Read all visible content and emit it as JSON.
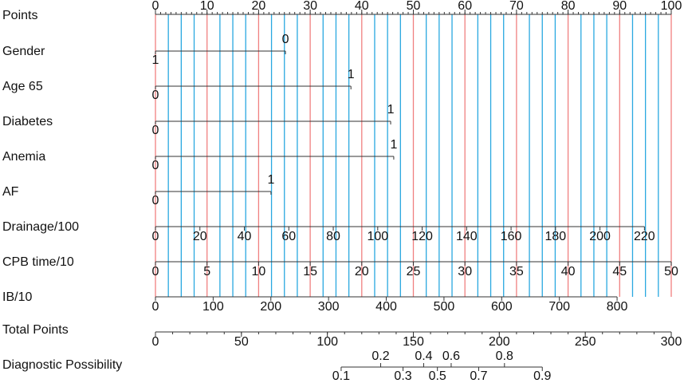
{
  "chart_data": {
    "type": "nomogram",
    "grid": {
      "major_color": "#f08080",
      "minor_color": "#29a8e0",
      "minor_step": 2.5
    },
    "points_axis": {
      "label": "Points",
      "xlim": [
        0,
        100
      ],
      "ticks": [
        0,
        10,
        20,
        30,
        40,
        50,
        60,
        70,
        80,
        90,
        100
      ],
      "minor_step": 1
    },
    "rows": [
      {
        "label": "Gender",
        "levels": [
          "0",
          "1"
        ],
        "points": [
          25.2,
          0
        ]
      },
      {
        "label": "Age 65",
        "levels": [
          "0",
          "1"
        ],
        "points": [
          0,
          37.9
        ]
      },
      {
        "label": "Diabetes",
        "levels": [
          "0",
          "1"
        ],
        "points": [
          0,
          45.6
        ]
      },
      {
        "label": "Anemia",
        "levels": [
          "0",
          "1"
        ],
        "points": [
          0,
          46.2
        ]
      },
      {
        "label": "AF",
        "levels": [
          "0",
          "1"
        ],
        "points": [
          0,
          22.4
        ]
      },
      {
        "label": "Drainage/100",
        "xlim": [
          0,
          220
        ],
        "points": [
          0,
          94.8
        ],
        "ticks": [
          0,
          20,
          40,
          60,
          80,
          100,
          120,
          140,
          160,
          180,
          200,
          220
        ]
      },
      {
        "label": "CPB time/10",
        "xlim": [
          0,
          50
        ],
        "points": [
          0,
          100
        ],
        "ticks": [
          0,
          5,
          10,
          15,
          20,
          25,
          30,
          35,
          40,
          45,
          50
        ]
      },
      {
        "label": "IB/10",
        "xlim": [
          0,
          800
        ],
        "points": [
          0,
          89.5
        ],
        "ticks": [
          0,
          100,
          200,
          300,
          400,
          500,
          600,
          700,
          800
        ]
      }
    ],
    "total_axis": {
      "label": "Total Points",
      "xlim": [
        0,
        300
      ],
      "ticks": [
        0,
        50,
        100,
        150,
        200,
        250,
        300
      ],
      "minor_step": 10
    },
    "probability_axis": {
      "label": "Diagnostic Possibility",
      "ticks": [
        0.1,
        0.2,
        0.3,
        0.4,
        0.5,
        0.6,
        0.7,
        0.8,
        0.9
      ],
      "total_points": [
        108,
        131,
        144,
        156,
        164,
        172,
        188,
        203,
        225
      ]
    }
  }
}
